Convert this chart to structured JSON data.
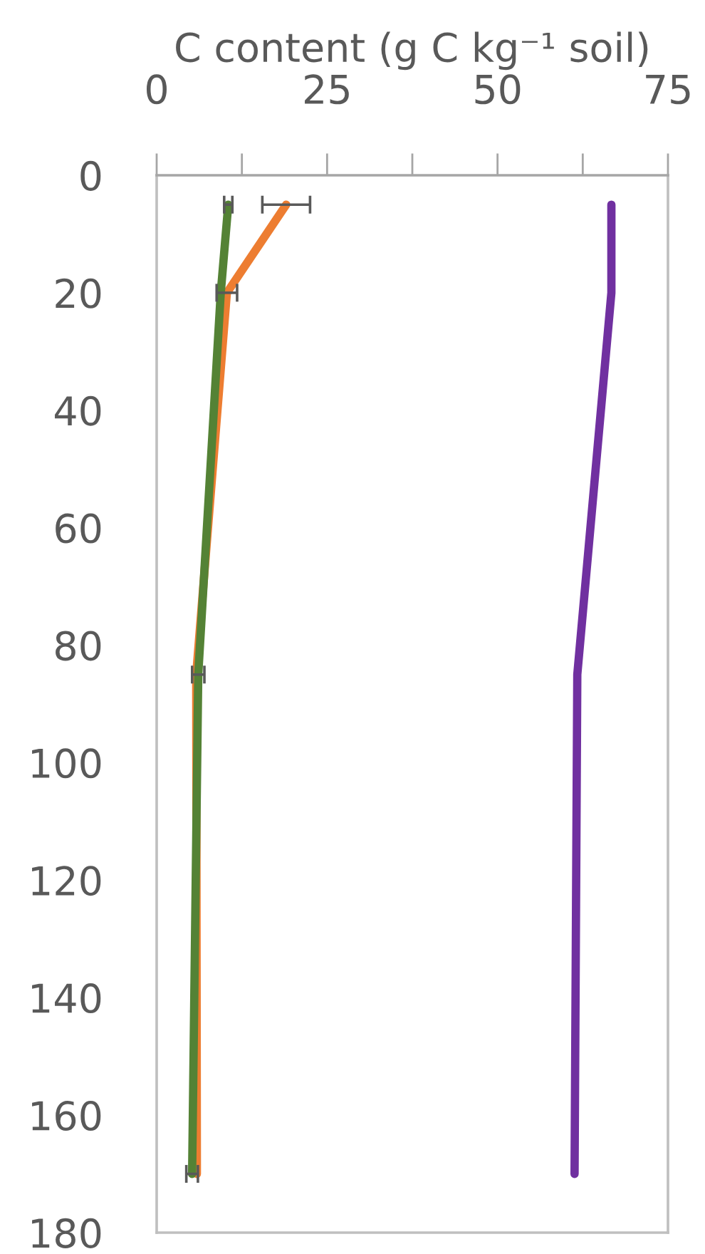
{
  "chart_data": {
    "type": "line",
    "xlabel": "C content (g C kg⁻¹ soil)",
    "xlim": [
      0,
      75
    ],
    "xticks": [
      0,
      {
        "value": 12.5,
        "label": null
      },
      25,
      {
        "value": 37.5,
        "label": null
      },
      50,
      {
        "value": 62.5,
        "label": null
      },
      75
    ],
    "ylim": [
      180,
      0
    ],
    "yticks": [
      0,
      20,
      40,
      60,
      80,
      100,
      120,
      140,
      160,
      180
    ],
    "line_style": "solid",
    "series": [
      {
        "color": "#ed7d31",
        "x": [
          19.0,
          10.3,
          5.8,
          5.9
        ],
        "values": [
          5,
          20,
          85,
          170
        ],
        "xerrors": [
          3.5,
          1.5,
          null,
          null
        ]
      },
      {
        "color": "#7030a0",
        "x": [
          66.7,
          66.7,
          61.7,
          61.3
        ],
        "values": [
          5,
          20,
          85,
          170
        ]
      },
      {
        "color": "#548235",
        "x": [
          10.5,
          9.4,
          6.1,
          5.2
        ],
        "values": [
          5,
          20,
          85,
          170
        ],
        "xerrors": [
          0.6,
          null,
          0.9,
          0.85
        ]
      }
    ]
  }
}
